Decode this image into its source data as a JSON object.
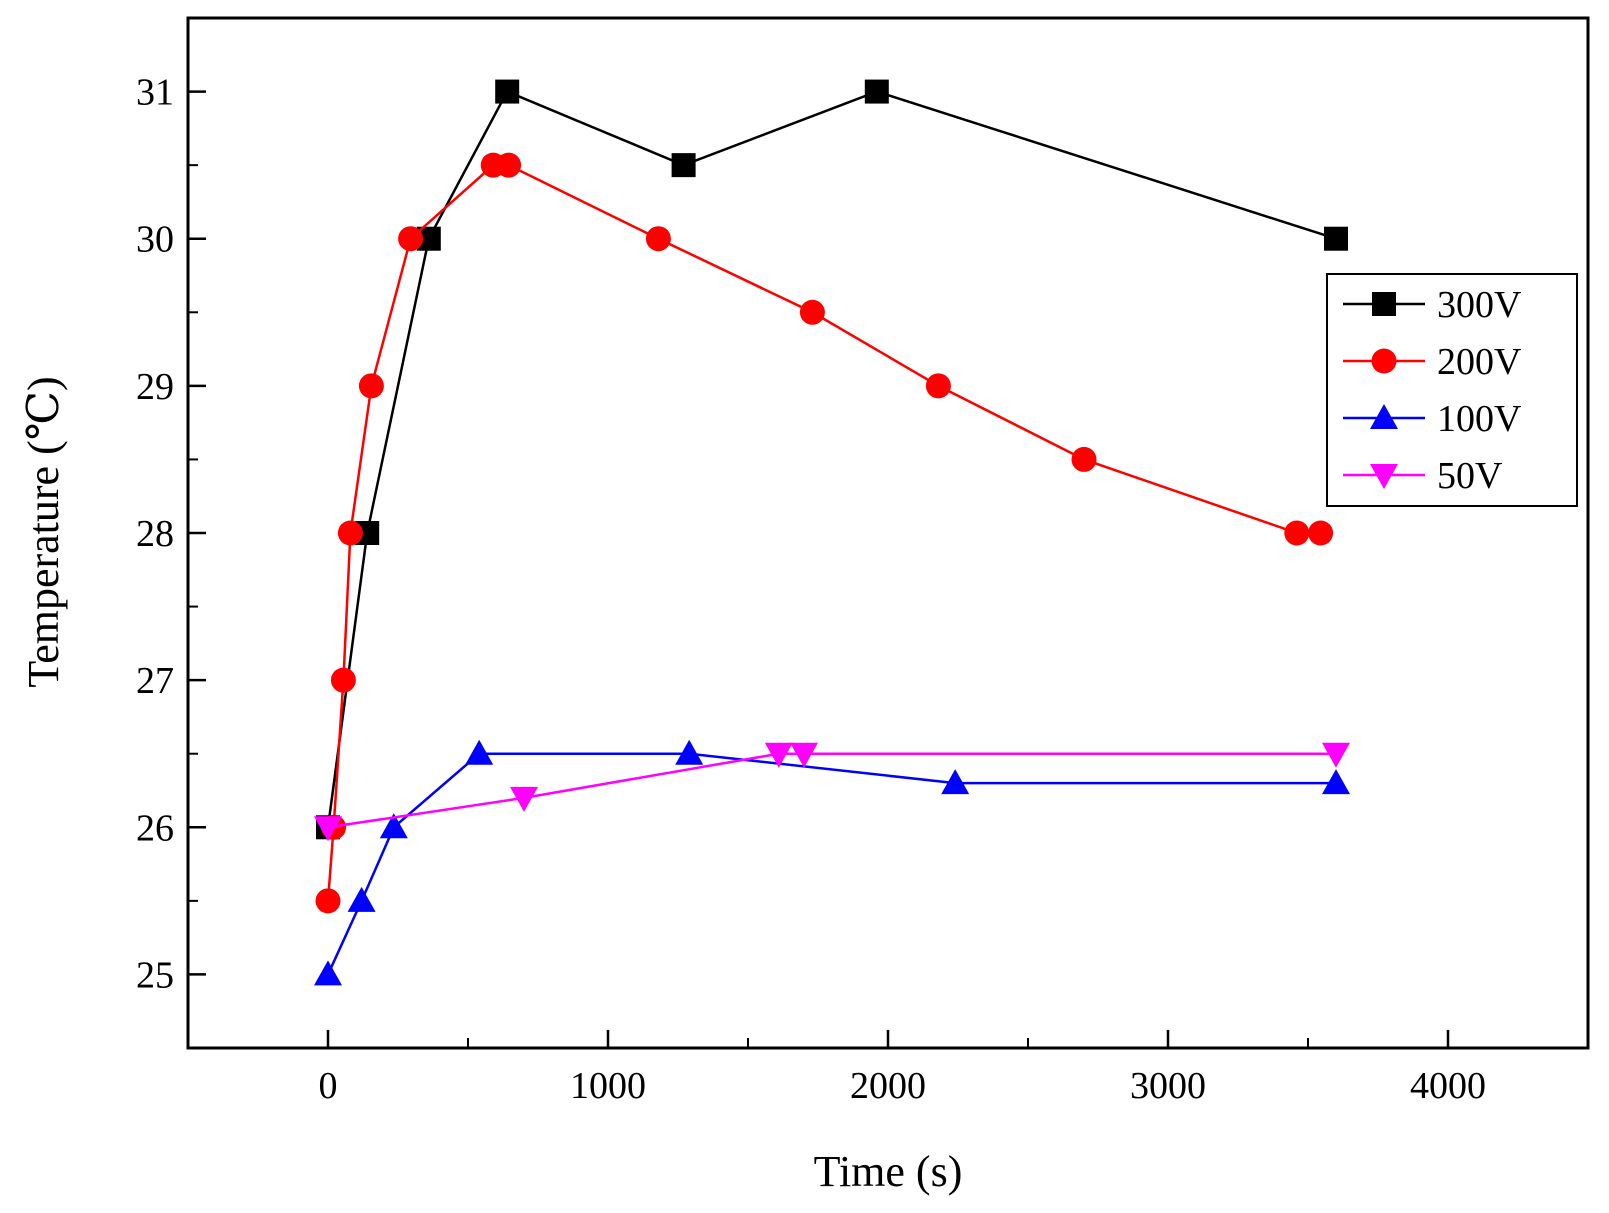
{
  "chart_data": {
    "type": "line",
    "xlabel": "Time (s)",
    "ylabel": "Temperature (℃)",
    "xlim": [
      -500,
      4500
    ],
    "ylim": [
      24.5,
      31.5
    ],
    "xticks": [
      0,
      1000,
      2000,
      3000,
      4000
    ],
    "yticks": [
      25,
      26,
      27,
      28,
      29,
      30,
      31
    ],
    "xtick_labels": [
      "0",
      "1000",
      "2000",
      "3000",
      "4000"
    ],
    "ytick_labels": [
      "25",
      "26",
      "27",
      "28",
      "29",
      "30",
      "31"
    ],
    "legend_position": "right",
    "series": [
      {
        "name": "300V",
        "color": "#000000",
        "marker": "square",
        "x": [
          0,
          140,
          360,
          640,
          1270,
          1960,
          3600
        ],
        "y": [
          26,
          28,
          30,
          31,
          30.5,
          31,
          30
        ]
      },
      {
        "name": "200V",
        "color": "#ff0000",
        "marker": "circle",
        "x": [
          0,
          20,
          55,
          80,
          155,
          295,
          590,
          645,
          1180,
          1730,
          2180,
          2700,
          3460,
          3545
        ],
        "y": [
          25.5,
          26,
          27,
          28,
          29,
          30,
          30.5,
          30.5,
          30,
          29.5,
          29,
          28.5,
          28,
          28
        ]
      },
      {
        "name": "100V",
        "color": "#0000ff",
        "marker": "triangle-up",
        "x": [
          0,
          120,
          235,
          540,
          1290,
          2240,
          3600
        ],
        "y": [
          25,
          25.5,
          26,
          26.5,
          26.5,
          26.3,
          26.3
        ]
      },
      {
        "name": "50V",
        "color": "#ff00ff",
        "marker": "triangle-down",
        "x": [
          0,
          700,
          1610,
          1700,
          3600
        ],
        "y": [
          26,
          26.2,
          26.5,
          26.5,
          26.5
        ]
      }
    ]
  }
}
